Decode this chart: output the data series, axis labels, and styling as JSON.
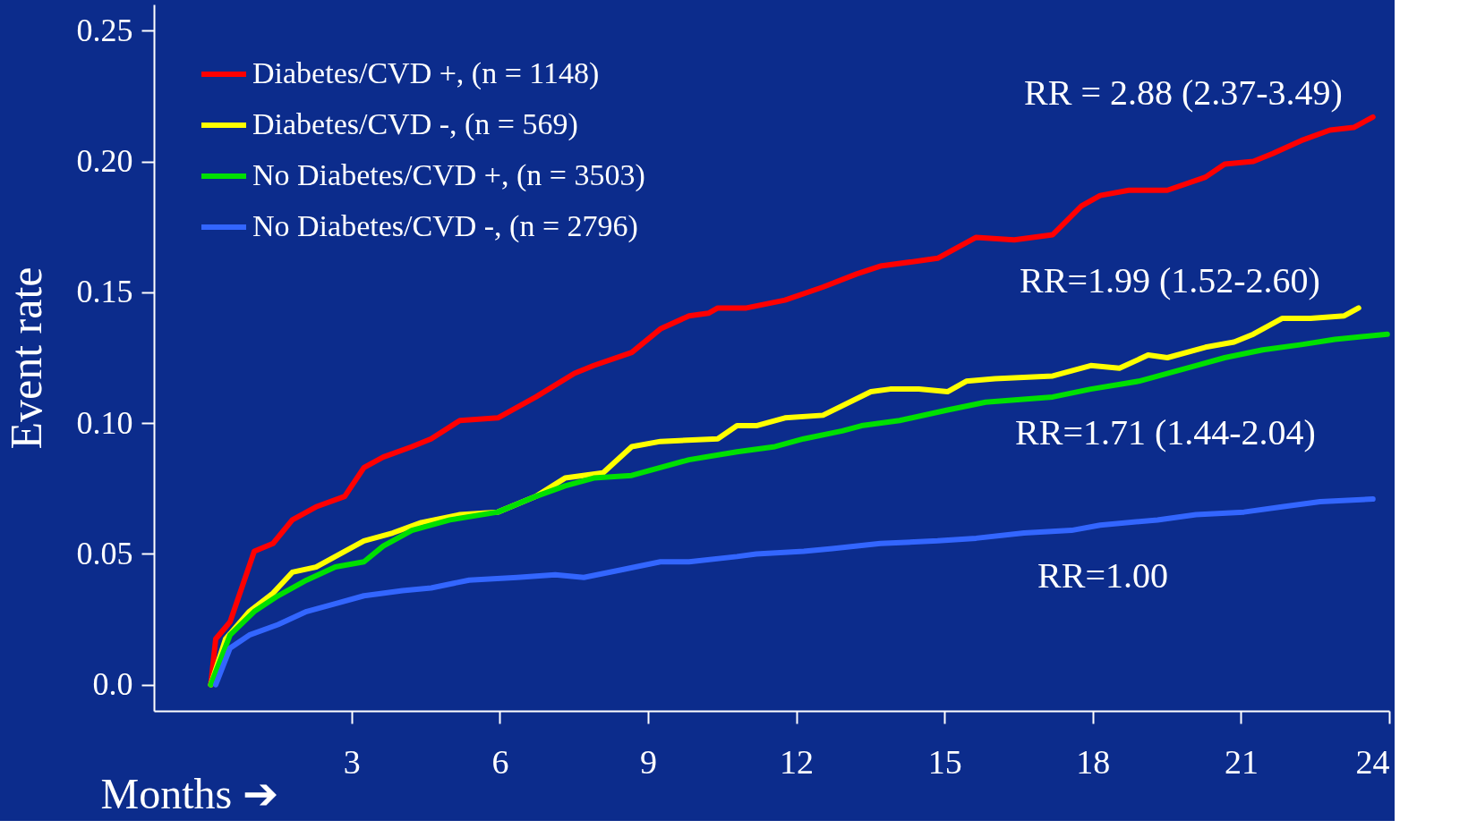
{
  "chart_data": {
    "type": "line",
    "xlabel": "Months ➔",
    "ylabel": "Event  rate",
    "xlim": [
      -1,
      24
    ],
    "xticks": [
      3,
      6,
      9,
      12,
      15,
      18,
      21,
      24
    ],
    "ylim": [
      -0.01,
      0.26
    ],
    "yticks": [
      {
        "value": 0,
        "label": "0.0"
      },
      0.05,
      {
        "value": 0.1,
        "label": "0.10"
      },
      0.15,
      {
        "value": 0.2,
        "label": "0.20"
      },
      0.25
    ],
    "grid": false,
    "legend": "top left",
    "marker": "none",
    "line_style": "solid",
    "series": [
      {
        "name": "Diabetes/CVD +, (n = 1148)",
        "color": "#ff0000",
        "x": [
          0.15,
          0.25,
          0.54,
          1.03,
          1.41,
          1.8,
          2.28,
          2.86,
          3.25,
          3.64,
          4.22,
          4.61,
          5.19,
          5.96,
          6.73,
          7.51,
          7.9,
          8.67,
          9.25,
          9.83,
          10.22,
          10.41,
          10.99,
          11.77,
          12.54,
          13.22,
          13.7,
          14.48,
          14.86,
          15.25,
          15.64,
          16.41,
          17.19,
          17.77,
          18.15,
          18.73,
          19.51,
          20.28,
          20.67,
          21.25,
          21.64,
          22.22,
          22.8,
          23.28,
          23.67
        ],
        "values": [
          0.0,
          0.0175,
          0.024,
          0.051,
          0.054,
          0.063,
          0.068,
          0.072,
          0.083,
          0.087,
          0.091,
          0.094,
          0.101,
          0.102,
          0.11,
          0.119,
          0.122,
          0.127,
          0.136,
          0.141,
          0.142,
          0.144,
          0.144,
          0.147,
          0.152,
          0.157,
          0.16,
          0.162,
          0.163,
          0.167,
          0.171,
          0.17,
          0.172,
          0.183,
          0.187,
          0.189,
          0.189,
          0.194,
          0.199,
          0.2,
          0.203,
          0.208,
          0.212,
          0.213,
          0.217
        ]
      },
      {
        "name": "Diabetes/CVD -, (n = 569)",
        "color": "#ffff00",
        "x": [
          0.15,
          0.45,
          0.93,
          1.41,
          1.8,
          2.28,
          2.86,
          3.25,
          3.83,
          4.41,
          5.19,
          5.96,
          6.73,
          7.32,
          8.09,
          8.67,
          9.25,
          10.41,
          10.8,
          11.19,
          11.77,
          12.54,
          13.51,
          13.9,
          14.48,
          15.06,
          15.44,
          16.02,
          17.19,
          17.96,
          18.54,
          19.12,
          19.51,
          20.28,
          20.86,
          21.25,
          21.83,
          22.41,
          23.09,
          23.38
        ],
        "values": [
          0.0,
          0.0175,
          0.028,
          0.035,
          0.043,
          0.045,
          0.051,
          0.055,
          0.058,
          0.062,
          0.065,
          0.066,
          0.072,
          0.079,
          0.081,
          0.091,
          0.093,
          0.094,
          0.099,
          0.099,
          0.102,
          0.103,
          0.112,
          0.113,
          0.113,
          0.112,
          0.116,
          0.117,
          0.118,
          0.122,
          0.121,
          0.126,
          0.125,
          0.129,
          0.131,
          0.134,
          0.14,
          0.14,
          0.141,
          0.144
        ]
      },
      {
        "name": "No Diabetes/CVD +, (n = 3503)",
        "color": "#00e000",
        "x": [
          0.15,
          0.54,
          1.03,
          1.51,
          2.09,
          2.67,
          3.25,
          3.64,
          4.22,
          4.99,
          5.96,
          6.73,
          7.32,
          7.9,
          8.67,
          9.83,
          10.8,
          11.57,
          12.15,
          12.93,
          13.32,
          14.09,
          15.06,
          15.83,
          17.19,
          17.96,
          18.93,
          19.51,
          20.09,
          20.67,
          21.44,
          22.22,
          22.9,
          23.96
        ],
        "values": [
          0.0,
          0.019,
          0.028,
          0.034,
          0.04,
          0.045,
          0.047,
          0.053,
          0.059,
          0.063,
          0.066,
          0.072,
          0.076,
          0.079,
          0.08,
          0.086,
          0.089,
          0.091,
          0.094,
          0.097,
          0.099,
          0.101,
          0.105,
          0.108,
          0.11,
          0.113,
          0.116,
          0.119,
          0.122,
          0.125,
          0.128,
          0.13,
          0.132,
          0.134
        ]
      },
      {
        "name": "No Diabetes/CVD -, (n = 2796)",
        "color": "#3366ff",
        "x": [
          0.25,
          0.54,
          0.93,
          1.51,
          2.09,
          2.67,
          3.25,
          4.03,
          4.61,
          5.38,
          6.35,
          7.12,
          7.7,
          8.48,
          9.25,
          9.83,
          10.8,
          11.19,
          12.15,
          12.73,
          13.7,
          14.86,
          15.64,
          16.61,
          17.57,
          18.15,
          19.31,
          20.09,
          21.06,
          21.83,
          22.6,
          23.67
        ],
        "values": [
          0.0,
          0.014,
          0.019,
          0.023,
          0.028,
          0.031,
          0.034,
          0.036,
          0.037,
          0.04,
          0.041,
          0.042,
          0.041,
          0.044,
          0.047,
          0.047,
          0.049,
          0.05,
          0.051,
          0.052,
          0.054,
          0.055,
          0.056,
          0.058,
          0.059,
          0.061,
          0.063,
          0.065,
          0.066,
          0.068,
          0.07,
          0.071
        ]
      }
    ],
    "annotations": [
      "RR = 2.88 (2.37-3.49)",
      "RR=1.99 (1.52-2.60)",
      "RR=1.71 (1.44-2.04)",
      "RR=1.00"
    ]
  }
}
